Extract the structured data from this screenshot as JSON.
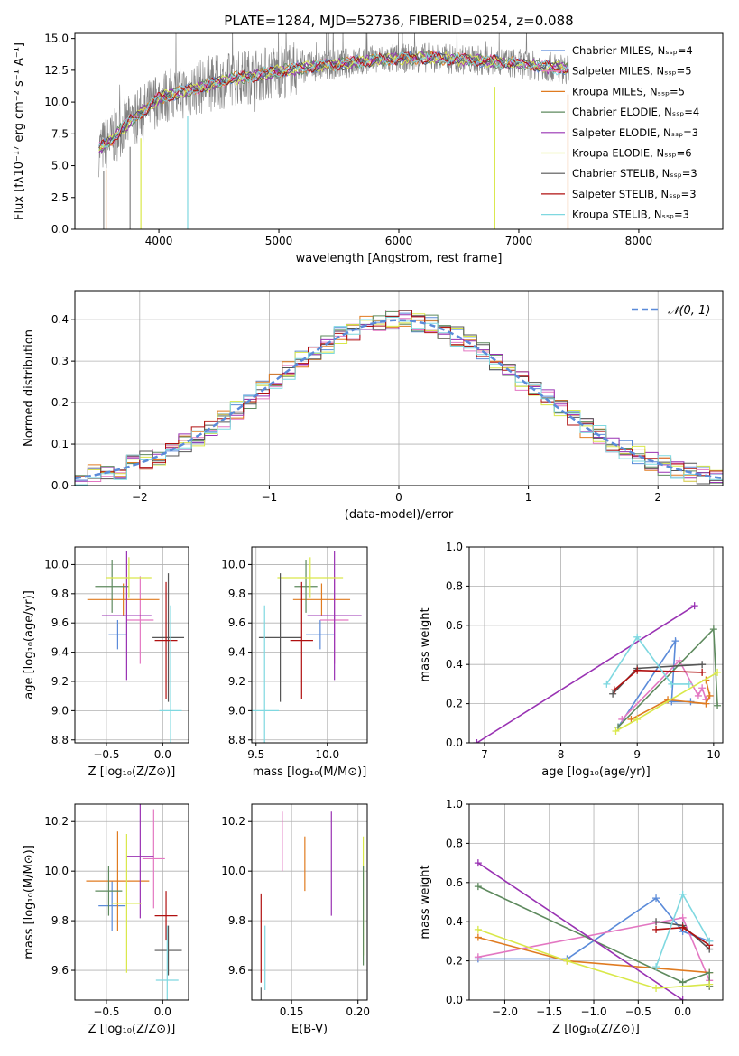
{
  "figure": {
    "title": "PLATE=1284, MJD=52736, FIBERID=0254, z=0.088"
  },
  "chart_data": [
    {
      "id": "spectrum",
      "type": "line",
      "xlabel": "wavelength [Angstrom, rest frame]",
      "ylabel": "Flux [fλ10⁻¹⁷ erg cm⁻² s⁻¹ A⁻¹]",
      "xlim": [
        3300,
        8700
      ],
      "ylim": [
        0,
        15.4
      ],
      "xticks": [
        4000,
        5000,
        6000,
        7000,
        8000
      ],
      "yticks": [
        0.0,
        2.5,
        5.0,
        7.5,
        10.0,
        12.5,
        15.0
      ],
      "legend_position": "top-right",
      "legend": [
        {
          "label": "Chabrier MILES, Nₛₛₚ=4",
          "color": "#5b8bd9"
        },
        {
          "label": "Salpeter MILES, Nₛₛₚ=5",
          "color": "#e377c2"
        },
        {
          "label": "Kroupa MILES, Nₛₛₚ=5",
          "color": "#e07b20"
        },
        {
          "label": "Chabrier ELODIE, Nₛₛₚ=4",
          "color": "#5e8a5e"
        },
        {
          "label": "Salpeter ELODIE, Nₛₛₚ=3",
          "color": "#9932b3"
        },
        {
          "label": "Kroupa ELODIE, Nₛₛₚ=6",
          "color": "#d9e84a"
        },
        {
          "label": "Chabrier STELIB, Nₛₛₚ=3",
          "color": "#555555"
        },
        {
          "label": "Salpeter STELIB, Nₛₛₚ=3",
          "color": "#b01010"
        },
        {
          "label": "Kroupa STELIB, Nₛₛₚ=3",
          "color": "#7fd8e0"
        }
      ],
      "continuum": {
        "x": [
          3500,
          3600,
          3700,
          3800,
          3900,
          4000,
          4100,
          4200,
          4400,
          4600,
          4800,
          5000,
          5200,
          5400,
          5600,
          5800,
          6000,
          6200,
          6400,
          6600,
          6800,
          7000,
          7200,
          7400
        ],
        "y": [
          6.3,
          7.0,
          8.0,
          8.8,
          9.5,
          10.3,
          10.6,
          10.8,
          11.3,
          11.8,
          12.1,
          12.4,
          12.7,
          12.9,
          13.1,
          13.3,
          13.4,
          13.5,
          13.4,
          13.3,
          13.2,
          13.0,
          12.8,
          12.6
        ]
      },
      "observed_color": "#808080",
      "model_color": "#7fd8e0"
    },
    {
      "id": "residuals",
      "type": "line",
      "xlabel": "(data-model)/error",
      "ylabel": "Normed distribution",
      "xlim": [
        -2.5,
        2.5
      ],
      "ylim": [
        0,
        0.47
      ],
      "xticks": [
        -2,
        -1,
        0,
        1,
        2
      ],
      "yticks": [
        0.0,
        0.1,
        0.2,
        0.3,
        0.4
      ],
      "legend_position": "top-right",
      "legend": [
        {
          "label": "𝒩(0, 1)",
          "color": "#5b8bd9"
        }
      ],
      "grid": true,
      "bin_width": 0.1,
      "histogram_colors": [
        "#5b8bd9",
        "#e377c2",
        "#e07b20",
        "#5e8a5e",
        "#9932b3",
        "#d9e84a",
        "#555555",
        "#b01010",
        "#7fd8e0"
      ]
    },
    {
      "id": "age-vs-z",
      "type": "scatter",
      "xlabel": "Z [log₁₀(Z/Z⊙)]",
      "ylabel": "age  [log₁₀(age/yr)]",
      "xlim": [
        -0.78,
        0.23
      ],
      "ylim": [
        8.78,
        10.12
      ],
      "xticks": [
        -0.5,
        0.0
      ],
      "yticks": [
        8.8,
        9.0,
        9.2,
        9.4,
        9.6,
        9.8,
        10.0
      ],
      "grid": true,
      "crosses": [
        {
          "color": "#5b8bd9",
          "x": -0.4,
          "xerr": 0.08,
          "y": 9.52,
          "yerr": 0.1
        },
        {
          "color": "#e377c2",
          "x": -0.2,
          "xerr": 0.12,
          "y": 9.62,
          "yerr": 0.3
        },
        {
          "color": "#e07b20",
          "x": -0.35,
          "xerr": 0.32,
          "y": 9.76,
          "yerr": 0.11
        },
        {
          "color": "#5e8a5e",
          "x": -0.45,
          "xerr": 0.15,
          "y": 9.85,
          "yerr": 0.18
        },
        {
          "color": "#9932b3",
          "x": -0.32,
          "xerr": 0.22,
          "y": 9.65,
          "yerr": 0.44
        },
        {
          "color": "#d9e84a",
          "x": -0.3,
          "xerr": 0.2,
          "y": 9.91,
          "yerr": 0.14
        },
        {
          "color": "#555555",
          "x": 0.05,
          "xerr": 0.14,
          "y": 9.5,
          "yerr": 0.44
        },
        {
          "color": "#b01010",
          "x": 0.03,
          "xerr": 0.1,
          "y": 9.48,
          "yerr": 0.4
        },
        {
          "color": "#7fd8e0",
          "x": 0.07,
          "xerr": 0.1,
          "y": 9.0,
          "yerr": 0.72
        }
      ]
    },
    {
      "id": "age-vs-mass",
      "type": "scatter",
      "xlabel": "mass [log₁₀(M/M⊙)]",
      "xlim": [
        9.47,
        10.28
      ],
      "ylim": [
        8.78,
        10.12
      ],
      "xticks": [
        9.5,
        10.0
      ],
      "yticks": [
        8.8,
        9.0,
        9.2,
        9.4,
        9.6,
        9.8,
        10.0
      ],
      "grid": true,
      "crosses": [
        {
          "color": "#5b8bd9",
          "x": 9.95,
          "xerr": 0.1,
          "y": 9.52,
          "yerr": 0.1
        },
        {
          "color": "#e377c2",
          "x": 10.05,
          "xerr": 0.1,
          "y": 9.62,
          "yerr": 0.3
        },
        {
          "color": "#e07b20",
          "x": 9.96,
          "xerr": 0.2,
          "y": 9.76,
          "yerr": 0.11
        },
        {
          "color": "#5e8a5e",
          "x": 9.85,
          "xerr": 0.08,
          "y": 9.85,
          "yerr": 0.18
        },
        {
          "color": "#9932b3",
          "x": 10.05,
          "xerr": 0.19,
          "y": 9.65,
          "yerr": 0.44
        },
        {
          "color": "#d9e84a",
          "x": 9.88,
          "xerr": 0.23,
          "y": 9.91,
          "yerr": 0.14
        },
        {
          "color": "#555555",
          "x": 9.67,
          "xerr": 0.15,
          "y": 9.5,
          "yerr": 0.44
        },
        {
          "color": "#b01010",
          "x": 9.82,
          "xerr": 0.08,
          "y": 9.48,
          "yerr": 0.4
        },
        {
          "color": "#7fd8e0",
          "x": 9.56,
          "xerr": 0.1,
          "y": 9.0,
          "yerr": 0.72
        }
      ]
    },
    {
      "id": "weight-vs-age",
      "type": "line",
      "xlabel": "age  [log₁₀(age/yr)]",
      "ylabel": "mass weight",
      "xlim": [
        6.8,
        10.12
      ],
      "ylim": [
        0,
        1.0
      ],
      "xticks": [
        7,
        8,
        9,
        10
      ],
      "yticks": [
        0.0,
        0.2,
        0.4,
        0.6,
        0.8,
        1.0
      ],
      "grid": true,
      "series": [
        {
          "color": "#5b8bd9",
          "x": [
            8.75,
            9.5,
            9.45,
            9.7
          ],
          "y": [
            0.08,
            0.52,
            0.21,
            0.21
          ]
        },
        {
          "color": "#e377c2",
          "x": [
            8.8,
            9.55,
            9.8,
            9.85,
            9.9
          ],
          "y": [
            0.12,
            0.42,
            0.24,
            0.28,
            0.22
          ]
        },
        {
          "color": "#e07b20",
          "x": [
            8.92,
            9.4,
            9.9,
            9.95,
            9.9
          ],
          "y": [
            0.12,
            0.22,
            0.2,
            0.24,
            0.32
          ]
        },
        {
          "color": "#5e8a5e",
          "x": [
            8.75,
            10.0,
            10.05
          ],
          "y": [
            0.08,
            0.58,
            0.19
          ]
        },
        {
          "color": "#9932b3",
          "x": [
            6.9,
            9.75
          ],
          "y": [
            0.0,
            0.7
          ]
        },
        {
          "color": "#d9e84a",
          "x": [
            8.72,
            9.0,
            10.05
          ],
          "y": [
            0.06,
            0.12,
            0.36
          ]
        },
        {
          "color": "#555555",
          "x": [
            8.68,
            9.0,
            9.85
          ],
          "y": [
            0.25,
            0.38,
            0.4
          ]
        },
        {
          "color": "#b01010",
          "x": [
            8.7,
            9.0,
            9.85
          ],
          "y": [
            0.27,
            0.37,
            0.36
          ]
        },
        {
          "color": "#7fd8e0",
          "x": [
            8.6,
            9.0,
            9.45,
            9.68
          ],
          "y": [
            0.3,
            0.54,
            0.3,
            0.3
          ]
        }
      ]
    },
    {
      "id": "mass-vs-z",
      "type": "scatter",
      "xlabel": "Z [log₁₀(Z/Z⊙)]",
      "ylabel": "mass [log₁₀(M/M⊙)]",
      "xlim": [
        -0.78,
        0.23
      ],
      "ylim": [
        9.48,
        10.27
      ],
      "xticks": [
        -0.5,
        0.0
      ],
      "yticks": [
        9.6,
        9.8,
        10.0,
        10.2
      ],
      "grid": true,
      "crosses": [
        {
          "color": "#5b8bd9",
          "x": -0.45,
          "xerr": 0.12,
          "y": 9.86,
          "yerr": 0.1
        },
        {
          "color": "#e377c2",
          "x": -0.08,
          "xerr": 0.1,
          "y": 10.05,
          "yerr": 0.2
        },
        {
          "color": "#e07b20",
          "x": -0.4,
          "xerr": 0.28,
          "y": 9.96,
          "yerr": 0.2
        },
        {
          "color": "#5e8a5e",
          "x": -0.48,
          "xerr": 0.12,
          "y": 9.92,
          "yerr": 0.1
        },
        {
          "color": "#9932b3",
          "x": -0.2,
          "xerr": 0.12,
          "y": 10.06,
          "yerr": 0.25
        },
        {
          "color": "#d9e84a",
          "x": -0.32,
          "xerr": 0.13,
          "y": 9.87,
          "yerr": 0.28
        },
        {
          "color": "#555555",
          "x": 0.05,
          "xerr": 0.12,
          "y": 9.68,
          "yerr": 0.1
        },
        {
          "color": "#b01010",
          "x": 0.03,
          "xerr": 0.1,
          "y": 9.82,
          "yerr": 0.1
        },
        {
          "color": "#7fd8e0",
          "x": 0.04,
          "xerr": 0.1,
          "y": 9.56,
          "yerr": 0.22
        }
      ]
    },
    {
      "id": "mass-vs-ebv",
      "type": "scatter",
      "xlabel": "E(B-V)",
      "xlim": [
        0.12,
        0.207
      ],
      "ylim": [
        9.48,
        10.27
      ],
      "xticks": [
        0.15,
        0.2
      ],
      "yticks": [
        9.6,
        9.8,
        10.0,
        10.2
      ],
      "grid": true,
      "crosses": [
        {
          "color": "#e377c2",
          "x": 0.143,
          "xerr": 0,
          "y": 10.12,
          "yerr": 0.12
        },
        {
          "color": "#e07b20",
          "x": 0.16,
          "xerr": 0,
          "y": 10.03,
          "yerr": 0.11
        },
        {
          "color": "#9932b3",
          "x": 0.18,
          "xerr": 0,
          "y": 10.03,
          "yerr": 0.21
        },
        {
          "color": "#d9e84a",
          "x": 0.204,
          "xerr": 0,
          "y": 9.9,
          "yerr": 0.24
        },
        {
          "color": "#5e8a5e",
          "x": 0.204,
          "xerr": 0,
          "y": 9.82,
          "yerr": 0.2
        },
        {
          "color": "#b01010",
          "x": 0.127,
          "xerr": 0,
          "y": 9.73,
          "yerr": 0.18
        },
        {
          "color": "#7fd8e0",
          "x": 0.13,
          "xerr": 0,
          "y": 9.65,
          "yerr": 0.13
        },
        {
          "color": "#555555",
          "x": 0.127,
          "xerr": 0,
          "y": 9.5,
          "yerr": 0.03
        }
      ]
    },
    {
      "id": "weight-vs-z",
      "type": "line",
      "xlabel": "Z [log₁₀(Z/Z⊙)]",
      "ylabel": "mass weight",
      "xlim": [
        -2.4,
        0.45
      ],
      "ylim": [
        0,
        1.0
      ],
      "xticks": [
        -2.0,
        -1.5,
        -1.0,
        -0.5,
        0.0
      ],
      "yticks": [
        0.0,
        0.2,
        0.4,
        0.6,
        0.8,
        1.0
      ],
      "grid": true,
      "series": [
        {
          "color": "#5b8bd9",
          "x": [
            -2.3,
            -1.3,
            -0.3,
            0.0,
            0.3
          ],
          "y": [
            0.21,
            0.21,
            0.52,
            0.35,
            0.3
          ]
        },
        {
          "color": "#e377c2",
          "x": [
            -2.3,
            0.0,
            0.3,
            0.3
          ],
          "y": [
            0.22,
            0.42,
            0.1,
            0.07
          ]
        },
        {
          "color": "#e07b20",
          "x": [
            -2.3,
            -1.3,
            0.3
          ],
          "y": [
            0.32,
            0.2,
            0.14
          ]
        },
        {
          "color": "#5e8a5e",
          "x": [
            -2.3,
            0.0,
            0.3,
            0.3
          ],
          "y": [
            0.58,
            0.09,
            0.14,
            0.07
          ]
        },
        {
          "color": "#9932b3",
          "x": [
            -2.3,
            0.0
          ],
          "y": [
            0.7,
            0.0
          ]
        },
        {
          "color": "#d9e84a",
          "x": [
            -2.3,
            -1.3,
            -0.3,
            0.3
          ],
          "y": [
            0.36,
            0.2,
            0.06,
            0.08
          ]
        },
        {
          "color": "#555555",
          "x": [
            -0.3,
            0.0,
            0.3
          ],
          "y": [
            0.4,
            0.38,
            0.26
          ]
        },
        {
          "color": "#b01010",
          "x": [
            -0.3,
            0.0,
            0.3
          ],
          "y": [
            0.36,
            0.37,
            0.28
          ]
        },
        {
          "color": "#7fd8e0",
          "x": [
            -0.3,
            0.0,
            0.3
          ],
          "y": [
            0.17,
            0.54,
            0.3
          ]
        }
      ]
    }
  ]
}
